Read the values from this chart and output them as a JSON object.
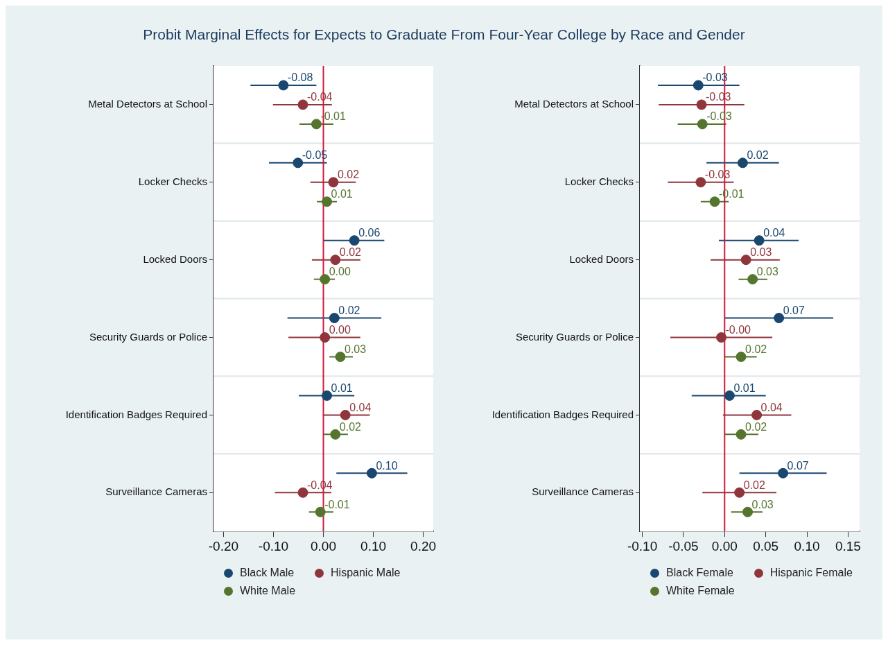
{
  "chart_data": [
    {
      "type": "scatter",
      "title": "Probit Marginal Effects for Expects to Graduate From Four-Year College by Race and Gender",
      "orientation": "horizontal",
      "categories": [
        "Metal Detectors at School",
        "Locker Checks",
        "Locked Doors",
        "Security Guards or Police",
        "Identification Badges Required",
        "Surveillance Cameras"
      ],
      "xlim": [
        -0.22,
        0.22
      ],
      "xticks": [
        {
          "value": -0.2,
          "label": "-0.20"
        },
        {
          "value": -0.1,
          "label": "-0.10"
        },
        {
          "value": 0,
          "label": "0.00"
        },
        {
          "value": 0.1,
          "label": "0.10"
        },
        {
          "value": 0.2,
          "label": "0.20"
        }
      ],
      "ref_lines": [
        {
          "axis": "x",
          "value": 0,
          "color": "#d1173c"
        }
      ],
      "grid": "y",
      "legend": "bottom",
      "marker": "circle",
      "series": [
        {
          "name": "Black Male",
          "color": "#1a476f",
          "values": [
            -0.08,
            -0.051,
            0.062,
            0.022,
            0.007,
            0.097
          ],
          "errors": [
            [
              -0.146,
              -0.014
            ],
            [
              -0.109,
              0.007
            ],
            [
              0.0,
              0.122
            ],
            [
              -0.072,
              0.116
            ],
            [
              -0.049,
              0.062
            ],
            [
              0.026,
              0.168
            ]
          ],
          "value_labels": [
            "-0.08",
            "-0.05",
            "0.06",
            "0.02",
            "0.01",
            "0.10"
          ]
        },
        {
          "name": "Hispanic Male",
          "color": "#90353b",
          "values": [
            -0.041,
            0.02,
            0.024,
            0.003,
            0.044,
            -0.041
          ],
          "errors": [
            [
              -0.101,
              0.017
            ],
            [
              -0.026,
              0.065
            ],
            [
              -0.023,
              0.074
            ],
            [
              -0.07,
              0.074
            ],
            [
              -0.001,
              0.093
            ],
            [
              -0.097,
              0.016
            ]
          ],
          "value_labels": [
            "-0.04",
            "0.02",
            "0.02",
            "0.00",
            "0.04",
            "-0.04"
          ]
        },
        {
          "name": "White Male",
          "color": "#55752f",
          "values": [
            -0.014,
            0.007,
            0.003,
            0.034,
            0.024,
            -0.006
          ],
          "errors": [
            [
              -0.048,
              0.02
            ],
            [
              -0.013,
              0.027
            ],
            [
              -0.019,
              0.023
            ],
            [
              0.012,
              0.059
            ],
            [
              0.001,
              0.049
            ],
            [
              -0.029,
              0.02
            ]
          ],
          "value_labels": [
            "-0.01",
            "0.01",
            "0.00",
            "0.03",
            "0.02",
            "-0.01"
          ]
        }
      ]
    },
    {
      "type": "scatter",
      "orientation": "horizontal",
      "categories": [
        "Metal Detectors at School",
        "Locker Checks",
        "Locked Doors",
        "Security Guards or Police",
        "Identification Badges Required",
        "Surveillance Cameras"
      ],
      "xlim": [
        -0.103,
        0.164
      ],
      "xticks": [
        {
          "value": -0.1,
          "label": "-0.10"
        },
        {
          "value": -0.05,
          "label": "-0.05"
        },
        {
          "value": 0,
          "label": "0.00"
        },
        {
          "value": 0.05,
          "label": "0.05"
        },
        {
          "value": 0.1,
          "label": "0.10"
        },
        {
          "value": 0.15,
          "label": "0.15"
        }
      ],
      "ref_lines": [
        {
          "axis": "x",
          "value": 0,
          "color": "#d1173c"
        }
      ],
      "grid": "y",
      "legend": "bottom",
      "marker": "circle",
      "series": [
        {
          "name": "Black Female",
          "color": "#1a476f",
          "values": [
            -0.032,
            0.022,
            0.042,
            0.066,
            0.006,
            0.071
          ],
          "errors": [
            [
              -0.081,
              0.018
            ],
            [
              -0.022,
              0.066
            ],
            [
              -0.007,
              0.09
            ],
            [
              0.0,
              0.132
            ],
            [
              -0.04,
              0.05
            ],
            [
              0.018,
              0.124
            ]
          ],
          "value_labels": [
            "-0.03",
            "0.02",
            "0.04",
            "0.07",
            "0.01",
            "0.07"
          ]
        },
        {
          "name": "Hispanic Female",
          "color": "#90353b",
          "values": [
            -0.028,
            -0.029,
            0.026,
            -0.004,
            0.039,
            0.018
          ],
          "errors": [
            [
              -0.08,
              0.024
            ],
            [
              -0.069,
              0.011
            ],
            [
              -0.017,
              0.067
            ],
            [
              -0.066,
              0.058
            ],
            [
              -0.002,
              0.081
            ],
            [
              -0.027,
              0.063
            ]
          ],
          "value_labels": [
            "-0.03",
            "-0.03",
            "0.03",
            "-0.00",
            "0.04",
            "0.02"
          ]
        },
        {
          "name": "White Female",
          "color": "#55752f",
          "values": [
            -0.027,
            -0.012,
            0.034,
            0.02,
            0.02,
            0.028
          ],
          "errors": [
            [
              -0.057,
              0.002
            ],
            [
              -0.029,
              0.005
            ],
            [
              0.017,
              0.052
            ],
            [
              0.0,
              0.039
            ],
            [
              0.0,
              0.041
            ],
            [
              0.008,
              0.046
            ]
          ],
          "value_labels": [
            "-0.03",
            "-0.01",
            "0.03",
            "0.02",
            "0.02",
            "0.03"
          ]
        }
      ]
    }
  ]
}
